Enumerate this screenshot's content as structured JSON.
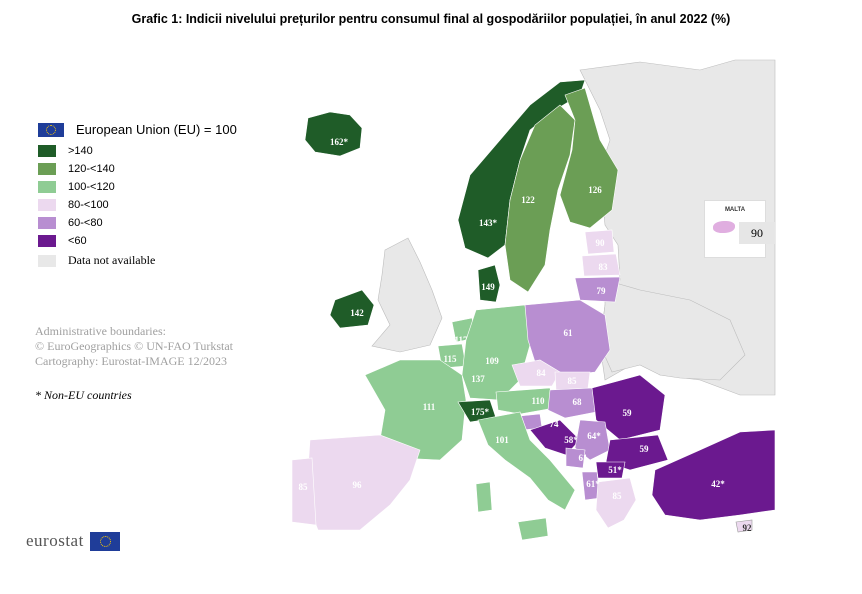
{
  "title": "Grafic 1: Indicii nivelului prețurilor pentru consumul final al gospodăriilor populației, în anul 2022 (%)",
  "legend": {
    "header": "European Union (EU) = 100",
    "classes": [
      {
        "label": ">140",
        "color": "#1f5c28"
      },
      {
        "label": "120-<140",
        "color": "#6b9e55"
      },
      {
        "label": "100-<120",
        "color": "#8fcc94"
      },
      {
        "label": "80-<100",
        "color": "#ecd9ef"
      },
      {
        "label": "60-<80",
        "color": "#b88ed1"
      },
      {
        "label": "<60",
        "color": "#6b198f"
      }
    ],
    "na_label": "Data not available",
    "na_color": "#e8e8e8"
  },
  "credits": {
    "line1": "Administrative boundaries:",
    "line2": "© EuroGeographics © UN-FAO Turkstat",
    "line3": "Cartography: Eurostat-IMAGE 12/2023"
  },
  "note": "* Non-EU countries",
  "brand": "eurostat",
  "inset": {
    "title": "MALTA",
    "value": "90"
  },
  "countries": {
    "iceland": "162*",
    "norway": "143*",
    "sweden": "122",
    "finland": "126",
    "estonia": "90",
    "latvia": "83",
    "lithuania": "79",
    "denmark": "149",
    "ireland": "142",
    "netherlands": "117",
    "belgium": "115",
    "luxembourg": "137",
    "germany": "109",
    "poland": "61",
    "czechia": "84",
    "slovakia": "85",
    "france": "111",
    "switzerland": "175*",
    "austria": "110",
    "slovenia": "74",
    "hungary": "68",
    "romania": "59",
    "croatia": "58*",
    "serbia": "64*",
    "bosnia": "61",
    "montenegro": "61",
    "bulgaria": "59",
    "north_macedonia": "51*",
    "albania": "61*",
    "greece": "85",
    "italy": "101",
    "spain": "96",
    "portugal": "85",
    "turkey": "42*",
    "cyprus": "92"
  }
}
